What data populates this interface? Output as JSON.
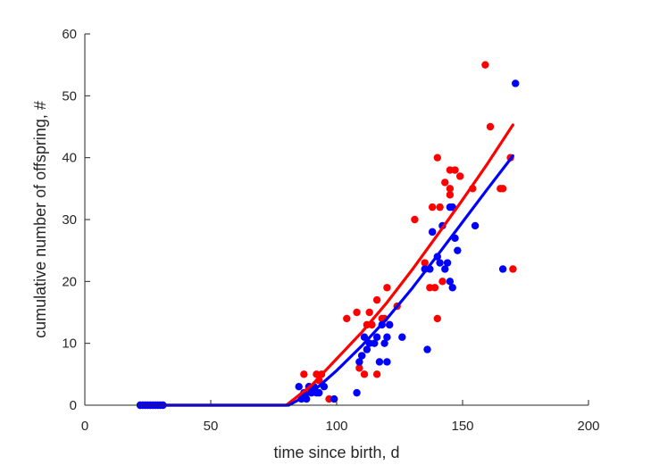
{
  "chart_data": {
    "type": "scatter",
    "title": "",
    "xlabel": "time since birth, d",
    "ylabel": "cumulative number of offspring, #",
    "xlim": [
      0,
      200
    ],
    "ylim": [
      0,
      60
    ],
    "xticks": [
      0,
      50,
      100,
      150,
      200
    ],
    "yticks": [
      0,
      10,
      20,
      30,
      40,
      50,
      60
    ],
    "grid": false,
    "legend": "none",
    "series": [
      {
        "color": "#ff0000",
        "kind": "points",
        "points": [
          [
            22,
            0
          ],
          [
            23,
            0
          ],
          [
            24,
            0
          ],
          [
            25,
            0
          ],
          [
            26,
            0
          ],
          [
            27,
            0
          ],
          [
            28,
            0
          ],
          [
            29,
            0
          ],
          [
            30,
            0
          ],
          [
            31,
            0
          ],
          [
            87,
            5
          ],
          [
            88,
            2
          ],
          [
            89,
            3
          ],
          [
            92,
            5
          ],
          [
            93,
            4
          ],
          [
            94,
            5
          ],
          [
            97,
            1
          ],
          [
            104,
            14
          ],
          [
            108,
            15
          ],
          [
            109,
            6
          ],
          [
            110,
            8
          ],
          [
            111,
            5
          ],
          [
            112,
            13
          ],
          [
            113,
            15
          ],
          [
            114,
            13
          ],
          [
            116,
            17
          ],
          [
            116,
            5
          ],
          [
            118,
            14
          ],
          [
            119,
            14
          ],
          [
            120,
            19
          ],
          [
            121,
            13
          ],
          [
            124,
            16
          ],
          [
            131,
            30
          ],
          [
            135,
            23
          ],
          [
            137,
            19
          ],
          [
            138,
            32
          ],
          [
            138,
            28
          ],
          [
            139,
            19
          ],
          [
            140,
            40
          ],
          [
            140,
            14
          ],
          [
            141,
            32
          ],
          [
            142,
            20
          ],
          [
            143,
            36
          ],
          [
            145,
            38
          ],
          [
            145,
            35
          ],
          [
            145,
            34
          ],
          [
            147,
            38
          ],
          [
            149,
            37
          ],
          [
            154,
            35
          ],
          [
            159,
            55
          ],
          [
            161,
            45
          ],
          [
            165,
            35
          ],
          [
            166,
            35
          ],
          [
            169,
            40
          ],
          [
            170,
            22
          ]
        ]
      },
      {
        "color": "#0000ff",
        "kind": "points",
        "points": [
          [
            22,
            0
          ],
          [
            23,
            0
          ],
          [
            24,
            0
          ],
          [
            25,
            0
          ],
          [
            26,
            0
          ],
          [
            27,
            0
          ],
          [
            28,
            0
          ],
          [
            29,
            0
          ],
          [
            30,
            0
          ],
          [
            31,
            0
          ],
          [
            85,
            3
          ],
          [
            86,
            1
          ],
          [
            87,
            2
          ],
          [
            88,
            1
          ],
          [
            89,
            3
          ],
          [
            90,
            2
          ],
          [
            91,
            3
          ],
          [
            92,
            2
          ],
          [
            93,
            2
          ],
          [
            95,
            3
          ],
          [
            99,
            1
          ],
          [
            108,
            2
          ],
          [
            109,
            7
          ],
          [
            110,
            8
          ],
          [
            111,
            11
          ],
          [
            112,
            9
          ],
          [
            113,
            10
          ],
          [
            115,
            10
          ],
          [
            116,
            11
          ],
          [
            117,
            7
          ],
          [
            118,
            13
          ],
          [
            119,
            10
          ],
          [
            120,
            7
          ],
          [
            120,
            11
          ],
          [
            121,
            13
          ],
          [
            126,
            11
          ],
          [
            135,
            22
          ],
          [
            136,
            9
          ],
          [
            137,
            22
          ],
          [
            138,
            28
          ],
          [
            140,
            24
          ],
          [
            141,
            23
          ],
          [
            142,
            29
          ],
          [
            143,
            22
          ],
          [
            144,
            23
          ],
          [
            145,
            20
          ],
          [
            145,
            32
          ],
          [
            146,
            32
          ],
          [
            146,
            19
          ],
          [
            147,
            27
          ],
          [
            148,
            25
          ],
          [
            155,
            29
          ],
          [
            166,
            22
          ],
          [
            171,
            52
          ]
        ]
      },
      {
        "color": "#ff0000",
        "kind": "line",
        "points": [
          [
            22,
            0
          ],
          [
            80,
            0
          ],
          [
            90,
            3.2
          ],
          [
            100,
            7.5
          ],
          [
            110,
            11.8
          ],
          [
            120,
            16.6
          ],
          [
            130,
            21.9
          ],
          [
            140,
            27.5
          ],
          [
            150,
            33.2
          ],
          [
            160,
            39.1
          ],
          [
            170,
            45.3
          ]
        ]
      },
      {
        "color": "#0000ff",
        "kind": "line",
        "points": [
          [
            22,
            0
          ],
          [
            81,
            0
          ],
          [
            90,
            2.0
          ],
          [
            100,
            5.6
          ],
          [
            110,
            9.6
          ],
          [
            120,
            14.0
          ],
          [
            130,
            18.9
          ],
          [
            140,
            24.2
          ],
          [
            150,
            29.6
          ],
          [
            160,
            35.0
          ],
          [
            170,
            40.3
          ]
        ]
      }
    ]
  }
}
